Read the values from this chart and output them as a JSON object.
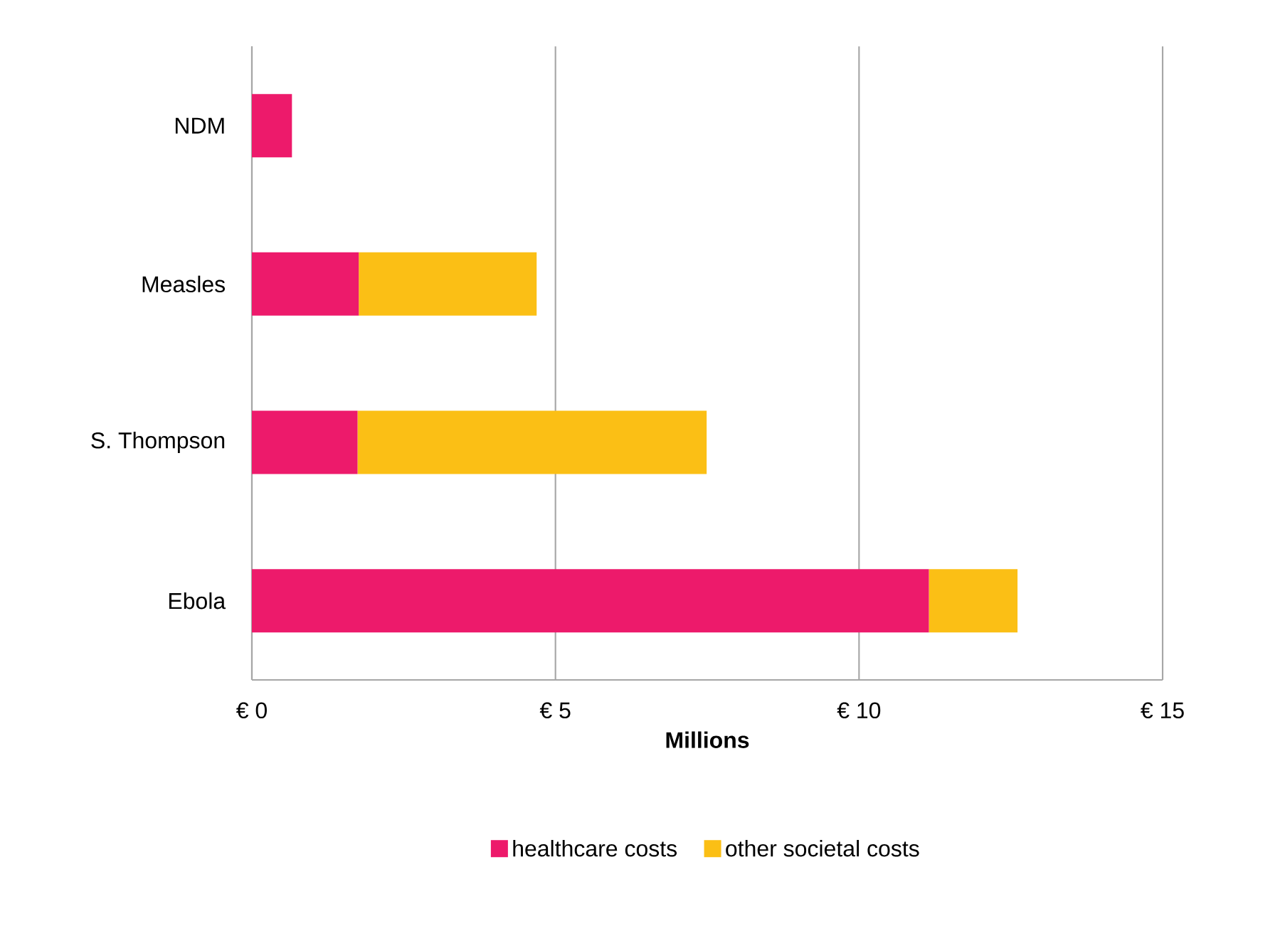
{
  "chart_data": {
    "type": "bar",
    "orientation": "horizontal",
    "stacked": true,
    "xlabel": "Millions",
    "categories": [
      "NDM",
      "Measles",
      "S. Thompson",
      "Ebola"
    ],
    "series": [
      {
        "name": "healthcare costs",
        "color": "#ed1a6b",
        "values": [
          0.66,
          1.76,
          1.74,
          11.15
        ]
      },
      {
        "name": "other societal costs",
        "color": "#fbbf15",
        "values": [
          null,
          2.93,
          5.75,
          1.46
        ]
      }
    ],
    "xlim": [
      0,
      15
    ],
    "xticks": [
      {
        "value": 0,
        "label": "€ 0"
      },
      {
        "value": 5,
        "label": "€ 5"
      },
      {
        "value": 10,
        "label": "€ 10"
      },
      {
        "value": 15,
        "label": "€ 15"
      }
    ],
    "grid": "x",
    "legend": "bottom"
  }
}
